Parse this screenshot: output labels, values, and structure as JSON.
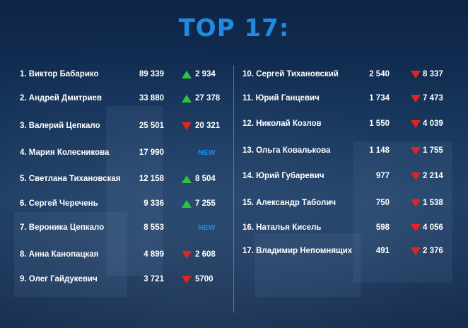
{
  "title": "TOP 17:",
  "colors": {
    "accent": "#1f8be0",
    "up": "#2bc43f",
    "down": "#e3241d"
  },
  "left": [
    {
      "name": "1. Виктор Бабарико",
      "votes": "89 339",
      "trend": "up",
      "change": "2 934"
    },
    {
      "name": "2. Андрей Дмитриев",
      "votes": "33 880",
      "trend": "up",
      "change": "27 378"
    },
    {
      "name": "3. Валерий Цепкало",
      "votes": "25 501",
      "trend": "down",
      "change": "20 321"
    },
    {
      "name": "4. Мария Колесникова",
      "votes": "17 990",
      "trend": "new",
      "change": "NEW"
    },
    {
      "name": "5. Светлана Тихановская",
      "votes": "12 158",
      "trend": "up",
      "change": "8 504"
    },
    {
      "name": "6. Сергей Черечень",
      "votes": "9 336",
      "trend": "up",
      "change": "7 255"
    },
    {
      "name": "7. Вероника Цепкало",
      "votes": "8 553",
      "trend": "new",
      "change": "NEW"
    },
    {
      "name": "8. Анна Канопацкая",
      "votes": "4 899",
      "trend": "down",
      "change": "2 608"
    },
    {
      "name": "9. Олег Гайдукевич",
      "votes": "3 721",
      "trend": "down",
      "change": "5700"
    }
  ],
  "right": [
    {
      "name": "10. Сергей Тихановский",
      "votes": "2 540",
      "trend": "down",
      "change": "8 337"
    },
    {
      "name": "11. Юрий Ганцевич",
      "votes": "1 734",
      "trend": "down",
      "change": "7 473"
    },
    {
      "name": "12. Николай Козлов",
      "votes": "1 550",
      "trend": "down",
      "change": "4 039"
    },
    {
      "name": "13. Ольга Ковалькова",
      "votes": "1 148",
      "trend": "down",
      "change": "1 755"
    },
    {
      "name": "14. Юрий Губаревич",
      "votes": "977",
      "trend": "down",
      "change": "2 214"
    },
    {
      "name": "15. Александр Таболич",
      "votes": "750",
      "trend": "down",
      "change": "1 538"
    },
    {
      "name": "16. Наталья Кисель",
      "votes": "598",
      "trend": "down",
      "change": "4 056"
    },
    {
      "name": "17. Владимир Непомнящих",
      "votes": "491",
      "trend": "down",
      "change": "2 376"
    }
  ]
}
